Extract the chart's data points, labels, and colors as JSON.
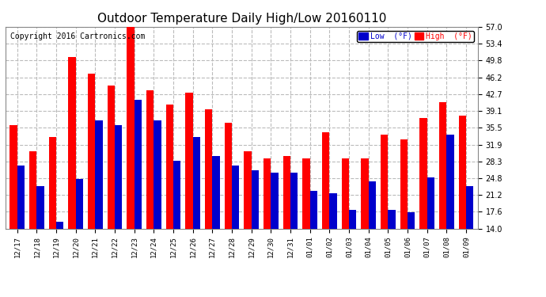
{
  "title": "Outdoor Temperature Daily High/Low 20160110",
  "copyright": "Copyright 2016 Cartronics.com",
  "legend_low": "Low  (°F)",
  "legend_high": "High  (°F)",
  "categories": [
    "12/17",
    "12/18",
    "12/19",
    "12/20",
    "12/21",
    "12/22",
    "12/23",
    "12/24",
    "12/25",
    "12/26",
    "12/27",
    "12/28",
    "12/29",
    "12/30",
    "12/31",
    "01/01",
    "01/02",
    "01/03",
    "01/04",
    "01/05",
    "01/06",
    "01/07",
    "01/08",
    "01/09"
  ],
  "high_values": [
    36.0,
    30.5,
    33.5,
    50.5,
    47.0,
    44.5,
    57.0,
    43.5,
    40.5,
    43.0,
    39.5,
    36.5,
    30.5,
    29.0,
    29.5,
    29.0,
    34.5,
    29.0,
    29.0,
    34.0,
    33.0,
    37.5,
    41.0,
    38.0
  ],
  "low_values": [
    27.5,
    23.0,
    15.5,
    24.5,
    37.0,
    36.0,
    41.5,
    37.0,
    28.5,
    33.5,
    29.5,
    27.5,
    26.5,
    26.0,
    26.0,
    22.0,
    21.5,
    18.0,
    24.0,
    18.0,
    17.5,
    25.0,
    34.0,
    23.0
  ],
  "high_color": "#ff0000",
  "low_color": "#0000cc",
  "bg_color": "#ffffff",
  "grid_color": "#bbbbbb",
  "yticks": [
    14.0,
    17.6,
    21.2,
    24.8,
    28.3,
    31.9,
    35.5,
    39.1,
    42.7,
    46.2,
    49.8,
    53.4,
    57.0
  ],
  "ymin": 14.0,
  "ymax": 57.0,
  "title_fontsize": 11,
  "copyright_fontsize": 7
}
